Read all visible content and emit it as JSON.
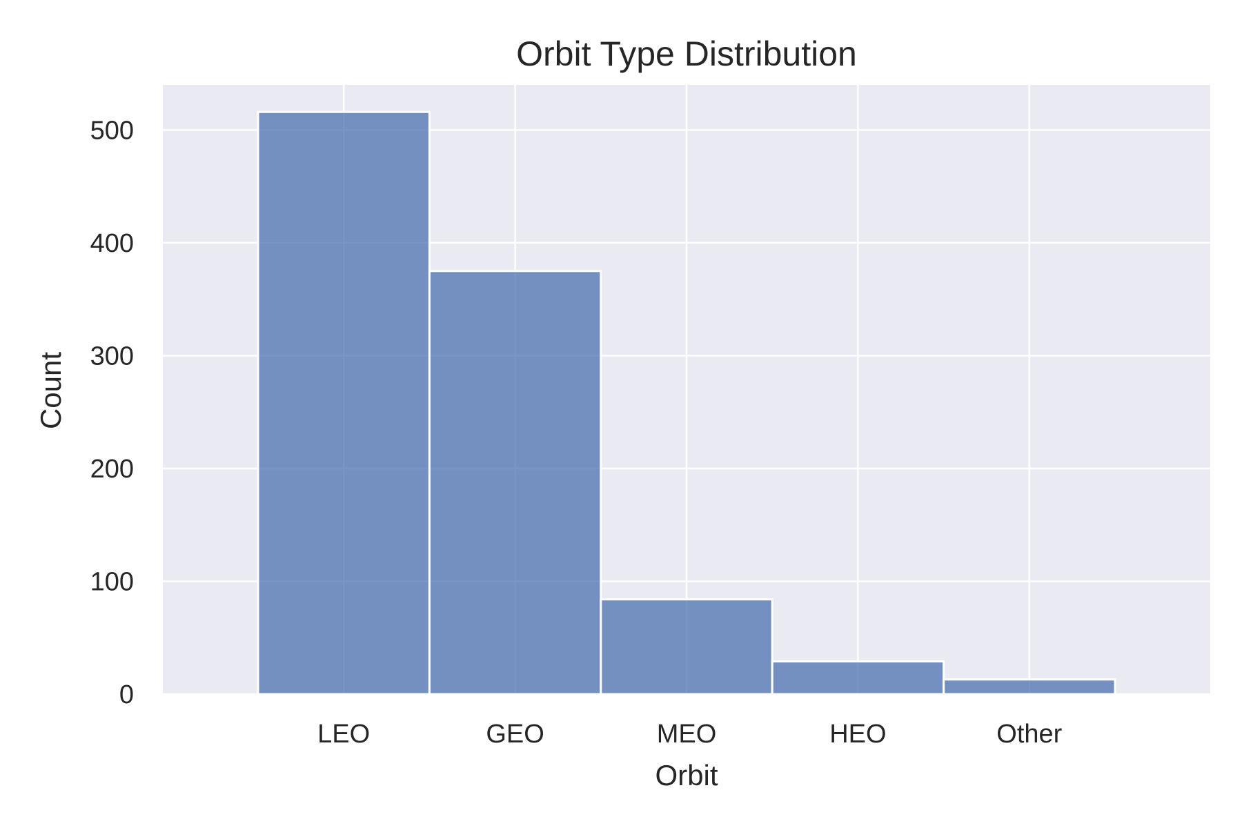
{
  "chart_data": {
    "type": "bar",
    "title": "Orbit Type Distribution",
    "xlabel": "Orbit",
    "ylabel": "Count",
    "categories": [
      "LEO",
      "GEO",
      "MEO",
      "HEO",
      "Other"
    ],
    "values": [
      516,
      375,
      84,
      29,
      13
    ],
    "ylim": [
      0,
      540
    ],
    "yticks": [
      0,
      100,
      200,
      300,
      400,
      500
    ],
    "grid": true,
    "legend": "none",
    "colors": {
      "bar": "#4C72B0",
      "plot_background": "#EAEAF2",
      "grid": "#FFFFFF"
    }
  }
}
